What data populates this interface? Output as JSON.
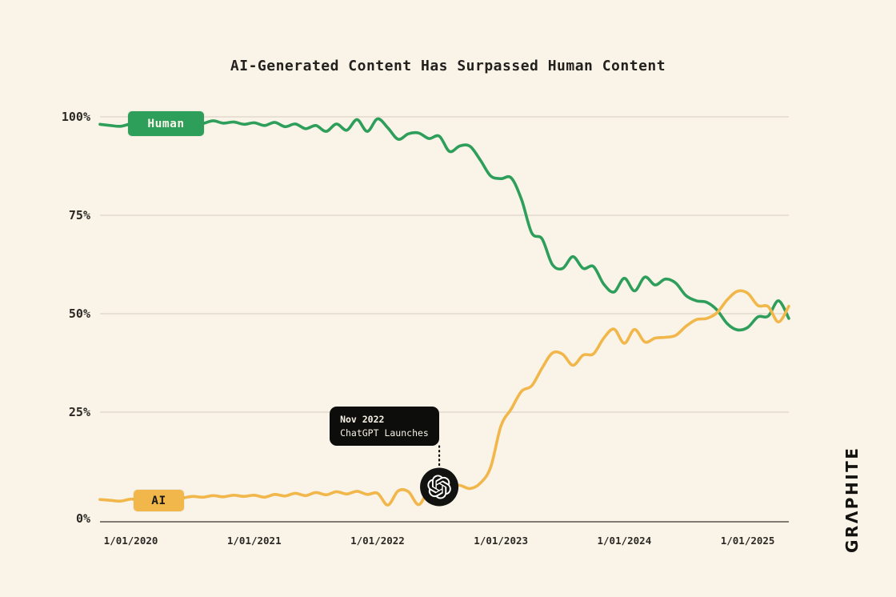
{
  "title": "AI-Generated Content Has Surpassed Human Content",
  "brand": {
    "wordmark": "GRΛPHITE"
  },
  "legend": {
    "human_label": "Human",
    "ai_label": "AI"
  },
  "annotation": {
    "line1": "Nov 2022",
    "line2": "ChatGPT Launches",
    "marker_month": "2022-07",
    "marker_icon": "openai-logo-icon"
  },
  "colors": {
    "background": "#FAF3E8",
    "human_green": "#2E9E5B",
    "ai_yellow": "#F1B74A",
    "grid": "#DED6C6",
    "axis": "#57534B",
    "ink": "#23211E",
    "tooltip_bg": "#0D0D0B",
    "tooltip_text": "#F7F1E6",
    "marker_bg": "#121210",
    "marker_glyph": "#FFFFFF"
  },
  "chart_data": {
    "type": "line",
    "title": "AI-Generated Content Has Surpassed Human Content",
    "xlabel": "",
    "ylabel": "",
    "ylim": [
      0,
      100
    ],
    "grid": true,
    "legend_position": "on-line-badges",
    "y_ticks": [
      {
        "label": "100%",
        "value": 100
      },
      {
        "label": "75%",
        "value": 75
      },
      {
        "label": "50%",
        "value": 50
      },
      {
        "label": "25%",
        "value": 25
      },
      {
        "label": "0%",
        "value": 0
      }
    ],
    "x_ticks": [
      {
        "label": "1/01/2020",
        "month": "2020-01"
      },
      {
        "label": "1/01/2021",
        "month": "2021-01"
      },
      {
        "label": "1/01/2022",
        "month": "2022-01"
      },
      {
        "label": "1/01/2023",
        "month": "2023-01"
      },
      {
        "label": "1/01/2024",
        "month": "2024-01"
      },
      {
        "label": "1/01/2025",
        "month": "2025-01"
      }
    ],
    "months": [
      "2019-10",
      "2019-11",
      "2019-12",
      "2020-01",
      "2020-02",
      "2020-03",
      "2020-04",
      "2020-05",
      "2020-06",
      "2020-07",
      "2020-08",
      "2020-09",
      "2020-10",
      "2020-11",
      "2020-12",
      "2021-01",
      "2021-02",
      "2021-03",
      "2021-04",
      "2021-05",
      "2021-06",
      "2021-07",
      "2021-08",
      "2021-09",
      "2021-10",
      "2021-11",
      "2021-12",
      "2022-01",
      "2022-02",
      "2022-03",
      "2022-04",
      "2022-05",
      "2022-06",
      "2022-07",
      "2022-08",
      "2022-09",
      "2022-10",
      "2022-11",
      "2022-12",
      "2023-01",
      "2023-02",
      "2023-03",
      "2023-04",
      "2023-05",
      "2023-06",
      "2023-07",
      "2023-08",
      "2023-09",
      "2023-10",
      "2023-11",
      "2023-12",
      "2024-01",
      "2024-02",
      "2024-03",
      "2024-04",
      "2024-05",
      "2024-06",
      "2024-07",
      "2024-08",
      "2024-09",
      "2024-10",
      "2024-11",
      "2024-12",
      "2025-01",
      "2025-02",
      "2025-03",
      "2025-04",
      "2025-05"
    ],
    "series": [
      {
        "name": "Human",
        "color": "#2E9E5B",
        "values": [
          98.1,
          97.8,
          97.6,
          98.2,
          98.0,
          98.3,
          98.1,
          98.4,
          98.2,
          98.0,
          98.3,
          99.0,
          98.4,
          98.7,
          98.1,
          98.5,
          97.8,
          98.6,
          97.5,
          98.2,
          97.0,
          97.8,
          96.3,
          98.2,
          96.6,
          99.3,
          96.3,
          99.5,
          97.2,
          94.3,
          95.7,
          95.9,
          94.5,
          95.1,
          91.2,
          92.6,
          92.5,
          89.0,
          85.0,
          84.3,
          84.5,
          79.0,
          70.5,
          69.0,
          62.5,
          61.5,
          64.5,
          61.5,
          62.0,
          57.5,
          55.5,
          59.0,
          55.8,
          59.3,
          57.3,
          58.8,
          57.8,
          54.6,
          53.3,
          52.9,
          51.0,
          47.5,
          45.9,
          46.5,
          49.2,
          49.4,
          53.3,
          48.8
        ]
      },
      {
        "name": "AI",
        "color": "#F1B74A",
        "values": [
          2.8,
          2.6,
          2.4,
          2.9,
          2.8,
          3.0,
          2.9,
          3.1,
          3.2,
          3.6,
          3.4,
          3.8,
          3.5,
          3.9,
          3.6,
          3.9,
          3.4,
          4.1,
          3.7,
          4.4,
          3.8,
          4.6,
          4.0,
          4.8,
          4.2,
          4.9,
          4.1,
          4.4,
          1.4,
          5.0,
          4.8,
          1.5,
          5.3,
          6.0,
          6.2,
          6.4,
          5.6,
          7.0,
          11.0,
          21.5,
          25.8,
          30.3,
          31.7,
          36.2,
          40.0,
          39.7,
          36.9,
          39.5,
          39.8,
          43.8,
          46.1,
          42.5,
          46.0,
          42.8,
          43.8,
          44.0,
          44.5,
          46.8,
          48.5,
          48.8,
          50.2,
          53.5,
          55.7,
          55.2,
          52.1,
          51.8,
          47.9,
          51.9
        ]
      }
    ]
  }
}
